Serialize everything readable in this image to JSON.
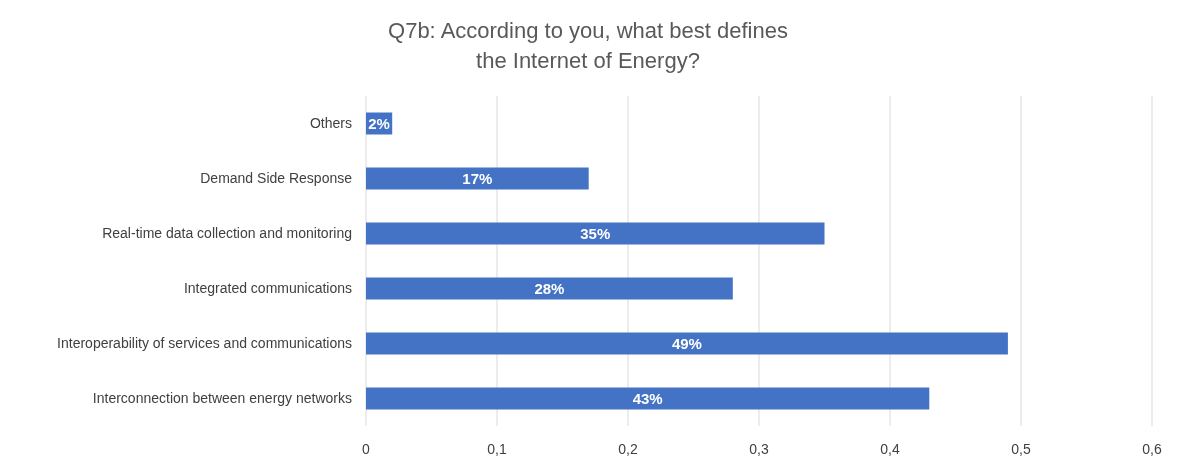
{
  "chart_data": {
    "type": "bar",
    "orientation": "horizontal",
    "title": "Q7b: According to you, what best defines\nthe Internet of Energy?",
    "categories": [
      "Others",
      "Demand Side Response",
      "Real-time data collection and monitoring",
      "Integrated communications",
      "Interoperability of services and communications",
      "Interconnection between energy networks"
    ],
    "values": [
      0.02,
      0.17,
      0.35,
      0.28,
      0.49,
      0.43
    ],
    "value_labels": [
      "2%",
      "17%",
      "35%",
      "28%",
      "49%",
      "43%"
    ],
    "color": "#4472c4",
    "xlim": [
      0,
      0.6
    ],
    "xticks": [
      0,
      {
        "value": 0.1,
        "label": "0,1"
      },
      {
        "value": 0.2,
        "label": "0,2"
      },
      {
        "value": 0.3,
        "label": "0,3"
      },
      {
        "value": 0.4,
        "label": "0,4"
      },
      {
        "value": 0.5,
        "label": "0,5"
      },
      {
        "value": 0.6,
        "label": "0,6"
      }
    ],
    "grid": "x"
  }
}
